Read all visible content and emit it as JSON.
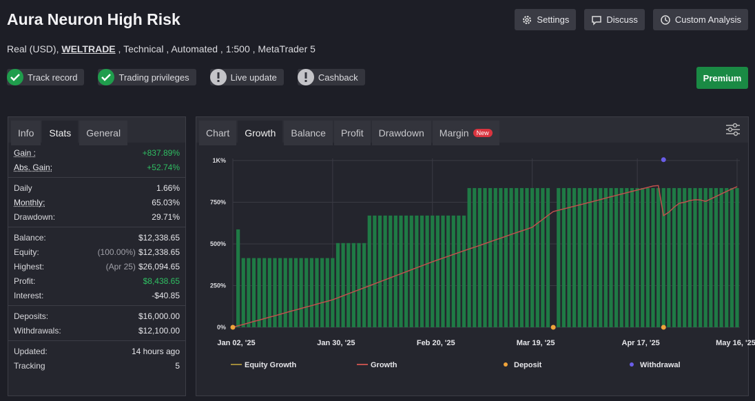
{
  "header": {
    "title": "Aura Neuron High Risk",
    "account": "Real (USD),",
    "broker": "WELTRADE",
    "details": ", Technical , Automated , 1:500 , MetaTrader 5",
    "buttons": [
      "Settings",
      "Discuss",
      "Custom Analysis"
    ],
    "badges": [
      {
        "label": "Track record",
        "status": "ok"
      },
      {
        "label": "Trading privileges",
        "status": "ok"
      },
      {
        "label": "Live update",
        "status": "warn"
      },
      {
        "label": "Cashback",
        "status": "warn"
      }
    ],
    "premium": "Premium"
  },
  "stats_tabs": [
    "Info",
    "Stats",
    "General"
  ],
  "stats": [
    [
      {
        "label": "Gain :",
        "value": "+837.89%",
        "tone": "positive",
        "underline": true
      },
      {
        "label": "Abs. Gain:",
        "value": "+52.74%",
        "tone": "positive",
        "underline": true
      }
    ],
    [
      {
        "label": "Daily",
        "value": "1.66%"
      },
      {
        "label": "Monthly:",
        "value": "65.03%",
        "underline": true
      },
      {
        "label": "Drawdown:",
        "value": "29.71%"
      }
    ],
    [
      {
        "label": "Balance:",
        "value": "$12,338.65"
      },
      {
        "label": "Equity:",
        "note": "(100.00%)",
        "value": "$12,338.65"
      },
      {
        "label": "Highest:",
        "note": "(Apr 25)",
        "value": "$26,094.65"
      },
      {
        "label": "Profit:",
        "value": "$8,438.65",
        "tone": "positive"
      },
      {
        "label": "Interest:",
        "value": "-$40.85"
      }
    ],
    [
      {
        "label": "Deposits:",
        "value": "$16,000.00"
      },
      {
        "label": "Withdrawals:",
        "value": "$12,100.00"
      }
    ],
    [
      {
        "label": "Updated:",
        "value": "14 hours ago"
      },
      {
        "label": "Tracking",
        "value": "5"
      }
    ]
  ],
  "chart_tabs": [
    "Chart",
    "Growth",
    "Balance",
    "Profit",
    "Drawdown",
    "Margin"
  ],
  "chart_tab_badge": "New",
  "chart_data": {
    "type": "bar",
    "ylim": [
      0,
      1000
    ],
    "yticks": [
      {
        "value": 0,
        "label": "0%"
      },
      {
        "value": 250,
        "label": "250%"
      },
      {
        "value": 500,
        "label": "500%"
      },
      {
        "value": 750,
        "label": "750%"
      },
      {
        "value": 1000,
        "label": "1K%"
      }
    ],
    "grid": true,
    "categories": [
      "Jan 02, '25",
      null,
      null,
      null,
      null,
      null,
      null,
      null,
      null,
      null,
      null,
      null,
      null,
      null,
      null,
      null,
      null,
      null,
      null,
      "Jan 30, '25",
      null,
      null,
      null,
      null,
      null,
      null,
      null,
      null,
      null,
      null,
      null,
      null,
      null,
      null,
      null,
      null,
      null,
      null,
      "Feb 20, '25",
      null,
      null,
      null,
      null,
      null,
      null,
      null,
      null,
      null,
      null,
      null,
      null,
      null,
      null,
      null,
      null,
      null,
      null,
      "Mar 19, '25",
      null,
      null,
      null,
      null,
      null,
      null,
      null,
      null,
      null,
      null,
      null,
      null,
      null,
      null,
      null,
      null,
      null,
      null,
      null,
      "Apr 17, '25",
      null,
      null,
      null,
      null,
      null,
      null,
      null,
      null,
      null,
      null,
      null,
      null,
      null,
      null,
      null,
      null,
      null,
      null,
      "May 16, '25"
    ],
    "series": [
      {
        "name": "Equity Growth",
        "type": "bar",
        "color": "#1f7a45",
        "legend_color": "#a08a3a",
        "values": [
          null,
          587,
          415,
          415,
          415,
          415,
          415,
          415,
          415,
          415,
          415,
          415,
          415,
          415,
          415,
          415,
          415,
          415,
          415,
          415,
          505,
          505,
          505,
          505,
          505,
          505,
          670,
          670,
          670,
          670,
          670,
          670,
          670,
          670,
          670,
          670,
          670,
          670,
          670,
          670,
          670,
          670,
          670,
          670,
          670,
          835,
          835,
          835,
          835,
          835,
          835,
          835,
          835,
          835,
          835,
          835,
          835,
          835,
          835,
          835,
          835,
          null,
          835,
          835,
          835,
          835,
          835,
          835,
          835,
          835,
          835,
          835,
          835,
          835,
          835,
          835,
          835,
          835,
          835,
          835,
          835,
          835,
          835,
          835,
          835,
          835,
          835,
          835,
          835,
          835,
          835,
          835,
          835,
          835,
          835,
          835,
          835
        ]
      },
      {
        "name": "Growth",
        "type": "line",
        "color": "#c0504d",
        "values": [
          0,
          9,
          17,
          26,
          35,
          43,
          52,
          61,
          69,
          78,
          87,
          96,
          104,
          113,
          122,
          130,
          139,
          148,
          156,
          165,
          177,
          189,
          201,
          213,
          225,
          237,
          249,
          261,
          273,
          285,
          297,
          309,
          321,
          333,
          345,
          357,
          369,
          381,
          393,
          404,
          415,
          426,
          437,
          448,
          459,
          470,
          480,
          491,
          502,
          513,
          524,
          535,
          546,
          557,
          568,
          578,
          589,
          600,
          624,
          647,
          671,
          694,
          702,
          710,
          718,
          726,
          734,
          742,
          750,
          758,
          766,
          775,
          783,
          791,
          799,
          807,
          815,
          823,
          831,
          839,
          847,
          850,
          670,
          690,
          720,
          744,
          750,
          760,
          765,
          764,
          755,
          770,
          785,
          800,
          815,
          830,
          843
        ]
      },
      {
        "name": "Deposit",
        "type": "scatter",
        "color": "#f0a33a",
        "values": [
          0,
          null,
          null,
          null,
          null,
          null,
          null,
          null,
          null,
          null,
          null,
          null,
          null,
          null,
          null,
          null,
          null,
          null,
          null,
          null,
          null,
          null,
          null,
          null,
          null,
          null,
          null,
          null,
          null,
          null,
          null,
          null,
          null,
          null,
          null,
          null,
          null,
          null,
          null,
          null,
          null,
          null,
          null,
          null,
          null,
          null,
          null,
          null,
          null,
          null,
          null,
          null,
          null,
          null,
          null,
          null,
          null,
          null,
          null,
          null,
          null,
          0,
          null,
          null,
          null,
          null,
          null,
          null,
          null,
          null,
          null,
          null,
          null,
          null,
          null,
          null,
          null,
          null,
          null,
          null,
          null,
          null,
          0,
          null,
          null,
          null,
          null,
          null,
          null,
          null,
          null,
          null,
          null,
          null,
          null,
          null,
          null
        ]
      },
      {
        "name": "Withdrawal",
        "type": "scatter",
        "color": "#6a5de8",
        "values": [
          null,
          null,
          null,
          null,
          null,
          null,
          null,
          null,
          null,
          null,
          null,
          null,
          null,
          null,
          null,
          null,
          null,
          null,
          null,
          null,
          null,
          null,
          null,
          null,
          null,
          null,
          null,
          null,
          null,
          null,
          null,
          null,
          null,
          null,
          null,
          null,
          null,
          null,
          null,
          null,
          null,
          null,
          null,
          null,
          null,
          null,
          null,
          null,
          null,
          null,
          null,
          null,
          null,
          null,
          null,
          null,
          null,
          null,
          null,
          null,
          null,
          null,
          null,
          null,
          null,
          null,
          null,
          null,
          null,
          null,
          null,
          null,
          null,
          null,
          null,
          null,
          null,
          null,
          null,
          null,
          null,
          null,
          1005,
          null,
          null,
          null,
          null,
          null,
          null,
          null,
          null,
          null,
          null,
          null,
          null,
          null,
          null
        ]
      }
    ]
  }
}
